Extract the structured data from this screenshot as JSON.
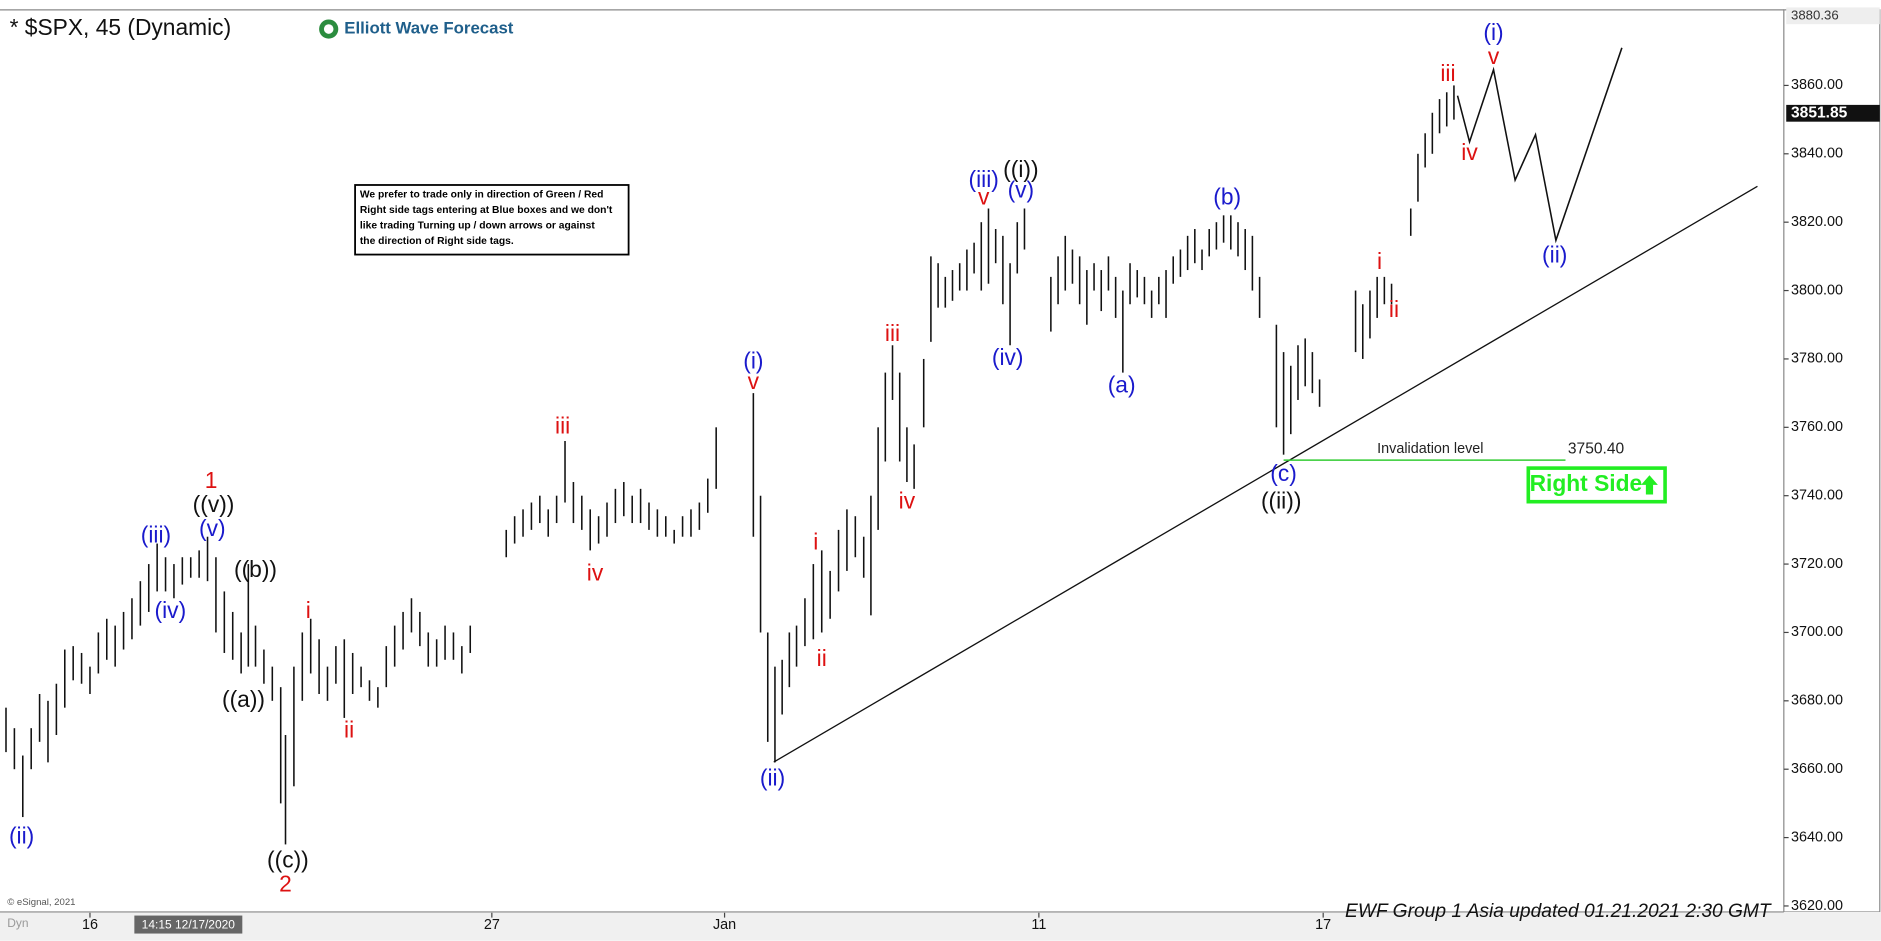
{
  "chart_data": {
    "type": "range-bar",
    "title": "* $SPX, 45 (Dynamic)",
    "brand": "Elliott Wave Forecast",
    "footer": "EWF Group 1 Asia updated 01.21.2021 2:30 GMT",
    "copyright": "© eSignal, 2021",
    "corner_label": "Dyn",
    "cursor_label": "14:15 12/17/2020",
    "color": "#111111",
    "xlim": [
      0,
      1487
    ],
    "ylim": [
      3618,
      3882
    ],
    "xticks": [
      {
        "value": 75,
        "label": "16"
      },
      {
        "value": 410,
        "label": "27"
      },
      {
        "value": 604,
        "label": "Jan"
      },
      {
        "value": 866,
        "label": "11"
      },
      {
        "value": 1103,
        "label": "17"
      }
    ],
    "yticks": [
      {
        "value": 3620,
        "label": "3620.00"
      },
      {
        "value": 3640,
        "label": "3640.00"
      },
      {
        "value": 3660,
        "label": "3660.00"
      },
      {
        "value": 3680,
        "label": "3680.00"
      },
      {
        "value": 3700,
        "label": "3700.00"
      },
      {
        "value": 3720,
        "label": "3720.00"
      },
      {
        "value": 3740,
        "label": "3740.00"
      },
      {
        "value": 3760,
        "label": "3760.00"
      },
      {
        "value": 3780,
        "label": "3780.00"
      },
      {
        "value": 3800,
        "label": "3800.00"
      },
      {
        "value": 3820,
        "label": "3820.00"
      },
      {
        "value": 3840,
        "label": "3840.00"
      },
      {
        "value": 3860,
        "label": "3860.00"
      }
    ],
    "price_tags": [
      3880.36,
      3851.85
    ],
    "x": [
      5,
      12,
      19,
      26,
      33,
      40,
      47,
      54,
      61,
      68,
      75,
      82,
      89,
      96,
      103,
      110,
      117,
      124,
      131,
      138,
      145,
      152,
      159,
      166,
      173,
      180,
      187,
      194,
      201,
      207,
      213,
      220,
      227,
      234,
      238,
      245,
      252,
      259,
      266,
      273,
      280,
      287,
      294,
      301,
      308,
      315,
      322,
      329,
      336,
      343,
      350,
      357,
      364,
      371,
      378,
      385,
      392,
      422,
      429,
      436,
      443,
      450,
      457,
      464,
      471,
      478,
      485,
      492,
      499,
      506,
      513,
      520,
      527,
      534,
      541,
      548,
      555,
      562,
      569,
      576,
      583,
      590,
      597,
      628,
      634,
      640,
      646,
      652,
      658,
      664,
      671,
      678,
      685,
      692,
      699,
      706,
      713,
      720,
      726,
      732,
      738,
      744,
      750,
      756,
      762,
      770,
      776,
      782,
      788,
      794,
      800,
      806,
      812,
      818,
      824,
      830,
      836,
      842,
      848,
      854,
      876,
      882,
      888,
      894,
      900,
      906,
      912,
      918,
      924,
      930,
      936,
      942,
      948,
      954,
      960,
      966,
      972,
      978,
      984,
      990,
      996,
      1002,
      1008,
      1014,
      1020,
      1026,
      1032,
      1038,
      1044,
      1050,
      1064,
      1070,
      1076,
      1082,
      1088,
      1094,
      1100,
      1130,
      1136,
      1142,
      1148,
      1154,
      1160,
      1176,
      1182,
      1188,
      1194,
      1200,
      1206,
      1212
    ],
    "high": [
      3678,
      3672,
      3664,
      3672,
      3682,
      3680,
      3685,
      3695,
      3696,
      3694,
      3690,
      3700,
      3704,
      3702,
      3706,
      3710,
      3715,
      3720,
      3726,
      3722,
      3720,
      3722,
      3722,
      3724,
      3728,
      3722,
      3712,
      3706,
      3700,
      3720,
      3702,
      3695,
      3690,
      3684,
      3670,
      3690,
      3700,
      3704,
      3698,
      3690,
      3696,
      3698,
      3694,
      3690,
      3686,
      3684,
      3696,
      3702,
      3706,
      3710,
      3706,
      3700,
      3698,
      3702,
      3700,
      3696,
      3702,
      3730,
      3734,
      3736,
      3738,
      3740,
      3736,
      3740,
      3756,
      3744,
      3740,
      3736,
      3734,
      3738,
      3742,
      3744,
      3740,
      3742,
      3738,
      3736,
      3734,
      3730,
      3734,
      3736,
      3738,
      3745,
      3760,
      3770,
      3740,
      3700,
      3690,
      3692,
      3700,
      3702,
      3710,
      3720,
      3724,
      3718,
      3730,
      3736,
      3734,
      3728,
      3740,
      3760,
      3776,
      3784,
      3776,
      3760,
      3755,
      3780,
      3810,
      3808,
      3804,
      3806,
      3808,
      3812,
      3814,
      3820,
      3824,
      3818,
      3816,
      3808,
      3820,
      3824,
      3804,
      3810,
      3816,
      3812,
      3810,
      3806,
      3808,
      3806,
      3810,
      3804,
      3800,
      3808,
      3806,
      3804,
      3800,
      3804,
      3806,
      3810,
      3812,
      3816,
      3818,
      3812,
      3818,
      3820,
      3822,
      3822,
      3820,
      3818,
      3816,
      3804,
      3790,
      3782,
      3778,
      3784,
      3786,
      3782,
      3774,
      3800,
      3796,
      3800,
      3804,
      3804,
      3802,
      3824,
      3840,
      3846,
      3852,
      3856,
      3858,
      3860
    ],
    "low": [
      3665,
      3660,
      3646,
      3660,
      3668,
      3662,
      3670,
      3678,
      3686,
      3685,
      3682,
      3688,
      3692,
      3690,
      3695,
      3698,
      3702,
      3706,
      3712,
      3712,
      3710,
      3714,
      3716,
      3716,
      3715,
      3700,
      3694,
      3692,
      3688,
      3690,
      3690,
      3685,
      3680,
      3650,
      3638,
      3655,
      3680,
      3688,
      3682,
      3680,
      3685,
      3675,
      3682,
      3684,
      3680,
      3678,
      3684,
      3690,
      3695,
      3700,
      3696,
      3690,
      3690,
      3692,
      3692,
      3688,
      3694,
      3722,
      3726,
      3728,
      3730,
      3732,
      3728,
      3732,
      3738,
      3732,
      3730,
      3724,
      3726,
      3728,
      3732,
      3734,
      3732,
      3732,
      3730,
      3728,
      3728,
      3726,
      3728,
      3728,
      3730,
      3735,
      3742,
      3728,
      3700,
      3668,
      3662,
      3676,
      3684,
      3690,
      3696,
      3698,
      3700,
      3704,
      3712,
      3718,
      3722,
      3716,
      3705,
      3730,
      3750,
      3768,
      3750,
      3744,
      3742,
      3760,
      3785,
      3795,
      3795,
      3797,
      3800,
      3800,
      3805,
      3800,
      3802,
      3808,
      3796,
      3784,
      3805,
      3812,
      3788,
      3796,
      3800,
      3802,
      3796,
      3790,
      3800,
      3794,
      3800,
      3792,
      3776,
      3796,
      3798,
      3796,
      3792,
      3796,
      3792,
      3802,
      3804,
      3806,
      3808,
      3806,
      3810,
      3812,
      3814,
      3812,
      3810,
      3806,
      3800,
      3792,
      3760,
      3752,
      3758,
      3768,
      3772,
      3770,
      3766,
      3782,
      3780,
      3786,
      3792,
      3796,
      3796,
      3816,
      3826,
      3836,
      3840,
      3846,
      3848,
      3850
    ],
    "trendline": {
      "x": [
        645,
        1465
      ],
      "y": [
        3662.1,
        3830.5
      ],
      "color": "#111111"
    },
    "projection": {
      "x": [
        1215,
        1225,
        1245,
        1263,
        1280,
        1297,
        1352
      ],
      "y": [
        3857,
        3843.5,
        3864.6,
        3832.3,
        3845.6,
        3814.7,
        3871
      ],
      "color": "#111111"
    },
    "invalidation": {
      "text": "Invalidation level",
      "value": 3750.4,
      "label": "3750.40",
      "x": [
        1070,
        1305
      ],
      "color": "#33cc33"
    },
    "right_side": {
      "text": "Right Side",
      "color": "#22ee22"
    },
    "note": [
      "We prefer to trade only in direction of Green / Red",
      "Right side tags entering at Blue boxes and we don't",
      "like trading Turning up / down arrows or against",
      "the direction of Right side tags."
    ],
    "annotations": [
      {
        "text": "(ii)",
        "x": 18,
        "y": 3640,
        "color": "#1a1acc"
      },
      {
        "text": "(iii)",
        "x": 130,
        "y": 3728,
        "color": "#1a1acc"
      },
      {
        "text": "(iv)",
        "x": 142,
        "y": 3706,
        "color": "#1a1acc"
      },
      {
        "text": "(v)",
        "x": 177,
        "y": 3730,
        "color": "#1a1acc"
      },
      {
        "text": "((v))",
        "x": 178,
        "y": 3737,
        "color": "#111111"
      },
      {
        "text": "1",
        "x": 176,
        "y": 3744,
        "color": "#dd1111"
      },
      {
        "text": "((b))",
        "x": 213,
        "y": 3718,
        "color": "#111111"
      },
      {
        "text": "((a))",
        "x": 203,
        "y": 3680,
        "color": "#111111"
      },
      {
        "text": "i",
        "x": 257,
        "y": 3706,
        "color": "#dd1111"
      },
      {
        "text": "ii",
        "x": 291,
        "y": 3671,
        "color": "#dd1111"
      },
      {
        "text": "((c))",
        "x": 240,
        "y": 3633,
        "color": "#111111"
      },
      {
        "text": "2",
        "x": 238,
        "y": 3626,
        "color": "#dd1111"
      },
      {
        "text": "iii",
        "x": 469,
        "y": 3760,
        "color": "#dd1111"
      },
      {
        "text": "iv",
        "x": 496,
        "y": 3717,
        "color": "#dd1111"
      },
      {
        "text": "(i)",
        "x": 628,
        "y": 3779,
        "color": "#1a1acc"
      },
      {
        "text": "v",
        "x": 628,
        "y": 3773,
        "color": "#dd1111"
      },
      {
        "text": "(ii)",
        "x": 644,
        "y": 3657,
        "color": "#1a1acc"
      },
      {
        "text": "i",
        "x": 680,
        "y": 3726,
        "color": "#dd1111"
      },
      {
        "text": "ii",
        "x": 685,
        "y": 3692,
        "color": "#dd1111"
      },
      {
        "text": "iii",
        "x": 744,
        "y": 3787,
        "color": "#dd1111"
      },
      {
        "text": "iv",
        "x": 756,
        "y": 3738,
        "color": "#dd1111"
      },
      {
        "text": "(iii)",
        "x": 820,
        "y": 3832,
        "color": "#1a1acc"
      },
      {
        "text": "v",
        "x": 820,
        "y": 3827,
        "color": "#dd1111"
      },
      {
        "text": "((i))",
        "x": 851,
        "y": 3835,
        "color": "#111111"
      },
      {
        "text": "(v)",
        "x": 851,
        "y": 3829,
        "color": "#1a1acc"
      },
      {
        "text": "(iv)",
        "x": 840,
        "y": 3780,
        "color": "#1a1acc"
      },
      {
        "text": "(a)",
        "x": 935,
        "y": 3772,
        "color": "#1a1acc"
      },
      {
        "text": "(b)",
        "x": 1023,
        "y": 3827,
        "color": "#1a1acc"
      },
      {
        "text": "(c)",
        "x": 1070,
        "y": 3746,
        "color": "#1a1acc"
      },
      {
        "text": "((ii))",
        "x": 1068,
        "y": 3738,
        "color": "#111111"
      },
      {
        "text": "i",
        "x": 1150,
        "y": 3808,
        "color": "#dd1111"
      },
      {
        "text": "ii",
        "x": 1162,
        "y": 3794,
        "color": "#dd1111"
      },
      {
        "text": "iii",
        "x": 1207,
        "y": 3863,
        "color": "#dd1111"
      },
      {
        "text": "(i)",
        "x": 1245,
        "y": 3875,
        "color": "#1a1acc"
      },
      {
        "text": "v",
        "x": 1245,
        "y": 3868,
        "color": "#dd1111"
      },
      {
        "text": "iv",
        "x": 1225,
        "y": 3840,
        "color": "#dd1111"
      },
      {
        "text": "(ii)",
        "x": 1296,
        "y": 3810,
        "color": "#1a1acc"
      }
    ]
  }
}
